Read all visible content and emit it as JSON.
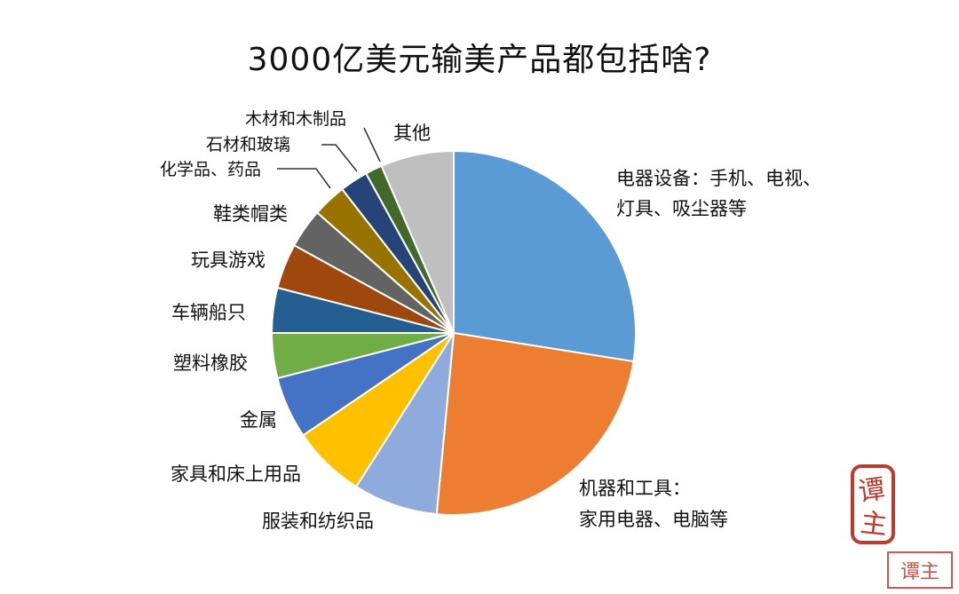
{
  "chart_data": {
    "type": "pie",
    "title": "3000亿美元输美产品都包括啥?",
    "slices": [
      {
        "label": "电器设备：手机、电视、灯具、吸尘器等",
        "line1": "电器设备：手机、电视、",
        "line2": "灯具、吸尘器等",
        "value": 27.5,
        "color": "#5b9bd5"
      },
      {
        "label": "机器和工具：家用电器、电脑等",
        "line1": "机器和工具：",
        "line2": "家用电器、电脑等",
        "value": 24.0,
        "color": "#ed7d31"
      },
      {
        "label": "服装和纺织品",
        "value": 7.5,
        "color": "#8faadc"
      },
      {
        "label": "家具和床上用品",
        "value": 6.5,
        "color": "#ffc000"
      },
      {
        "label": "金属",
        "value": 5.5,
        "color": "#4472c4"
      },
      {
        "label": "塑料橡胶",
        "value": 4.0,
        "color": "#70ad47"
      },
      {
        "label": "车辆船只",
        "value": 4.0,
        "color": "#255e91"
      },
      {
        "label": "玩具游戏",
        "value": 4.0,
        "color": "#9e480e"
      },
      {
        "label": "鞋类帽类",
        "value": 3.5,
        "color": "#636363"
      },
      {
        "label": "化学品、药品",
        "value": 3.0,
        "color": "#997300"
      },
      {
        "label": "石材和玻璃",
        "value": 2.5,
        "color": "#264478"
      },
      {
        "label": "木材和木制品",
        "value": 1.5,
        "color": "#43682b"
      },
      {
        "label": "其他",
        "value": 6.5,
        "color": "#bfbfbf"
      }
    ]
  },
  "seal": {
    "text": "谭主",
    "watermark": "谭主"
  }
}
